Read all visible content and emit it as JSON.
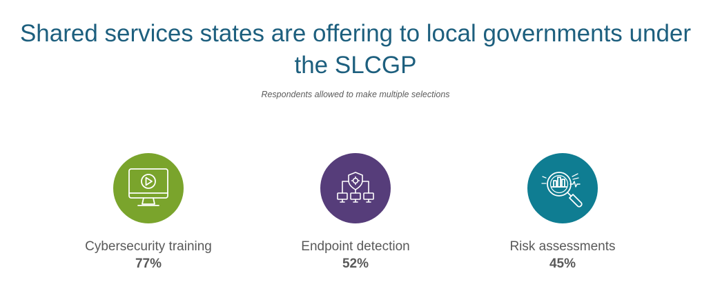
{
  "chart_data": {
    "type": "table",
    "title": "Shared services states are offering to local governments under the SLCGP",
    "subtitle": "Respondents allowed to make multiple selections",
    "categories": [
      "Cybersecurity training",
      "Endpoint detection",
      "Risk assessments"
    ],
    "values": [
      "77%",
      "52%",
      "45%"
    ],
    "icons": [
      "monitor-play-icon",
      "shield-network-icon",
      "magnifier-chart-icon"
    ],
    "colors": [
      "#7aa42c",
      "#563d7a",
      "#0f7d92"
    ]
  }
}
